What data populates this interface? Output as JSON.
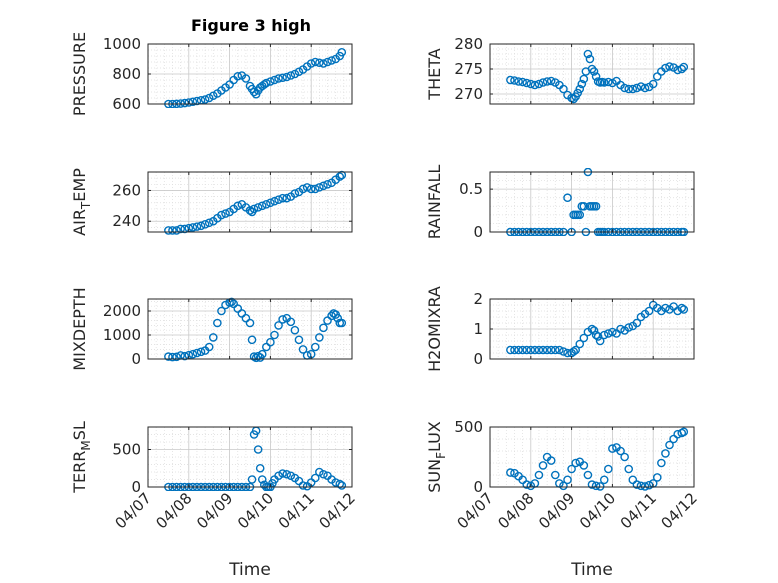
{
  "figure_title": "Figure 3 high",
  "colors": {
    "marker": "#0072BD",
    "axis": "#262626",
    "grid": "#c8c8c8",
    "minor_grid": "#dcdcdc",
    "background": "#ffffff"
  },
  "chart_data": [
    {
      "type": "scatter",
      "position": "row1-left",
      "title": "Figure 3 high",
      "ylabel": "PRESSURE",
      "ylabel_sub": "",
      "ylim": [
        600,
        1000
      ],
      "yticks": [
        600,
        800,
        1000
      ],
      "ytick_labels": [
        "600",
        "800",
        "1000"
      ],
      "xlim": [
        0,
        5
      ],
      "xticks": [
        0,
        1,
        2,
        3,
        4,
        5
      ],
      "xlabel": "",
      "grid": true,
      "minor_grid": true,
      "marker": "open-circle",
      "x": [
        0.5,
        0.6,
        0.7,
        0.8,
        0.9,
        1.0,
        1.1,
        1.2,
        1.3,
        1.4,
        1.5,
        1.6,
        1.7,
        1.8,
        1.9,
        2.0,
        2.1,
        2.2,
        2.3,
        2.4,
        2.5,
        2.55,
        2.6,
        2.65,
        2.7,
        2.75,
        2.8,
        2.85,
        2.9,
        3.0,
        3.1,
        3.2,
        3.3,
        3.4,
        3.5,
        3.6,
        3.7,
        3.8,
        3.9,
        4.0,
        4.1,
        4.2,
        4.3,
        4.4,
        4.5,
        4.6,
        4.7,
        4.75
      ],
      "y": [
        600,
        600,
        601,
        603,
        606,
        610,
        615,
        620,
        625,
        630,
        640,
        655,
        670,
        690,
        710,
        730,
        760,
        785,
        790,
        770,
        720,
        700,
        680,
        665,
        690,
        710,
        720,
        730,
        740,
        750,
        760,
        770,
        775,
        780,
        790,
        800,
        815,
        830,
        850,
        870,
        880,
        875,
        870,
        880,
        890,
        900,
        920,
        945
      ]
    },
    {
      "type": "scatter",
      "position": "row1-right",
      "ylabel": "THETA",
      "ylabel_sub": "",
      "ylim": [
        268,
        280
      ],
      "yticks": [
        270,
        275,
        280
      ],
      "ytick_labels": [
        "270",
        "275",
        "280"
      ],
      "xlim": [
        0,
        5
      ],
      "xticks": [
        0,
        1,
        2,
        3,
        4,
        5
      ],
      "xlabel": "",
      "grid": true,
      "minor_grid": true,
      "marker": "open-circle",
      "x": [
        0.5,
        0.6,
        0.7,
        0.8,
        0.9,
        1.0,
        1.1,
        1.2,
        1.3,
        1.4,
        1.5,
        1.6,
        1.7,
        1.8,
        1.9,
        2.0,
        2.05,
        2.1,
        2.15,
        2.2,
        2.25,
        2.3,
        2.35,
        2.4,
        2.45,
        2.5,
        2.55,
        2.6,
        2.65,
        2.7,
        2.75,
        2.8,
        2.9,
        3.0,
        3.1,
        3.2,
        3.3,
        3.4,
        3.5,
        3.6,
        3.7,
        3.8,
        3.9,
        4.0,
        4.1,
        4.2,
        4.3,
        4.4,
        4.5,
        4.6,
        4.7,
        4.75
      ],
      "y": [
        272.8,
        272.7,
        272.5,
        272.4,
        272.2,
        272.0,
        271.8,
        272.0,
        272.3,
        272.5,
        272.6,
        272.3,
        271.8,
        271.0,
        269.8,
        269.2,
        269.0,
        269.5,
        270.2,
        271.0,
        272.0,
        273.0,
        274.5,
        278.0,
        277.0,
        275.0,
        274.5,
        273.5,
        272.5,
        272.3,
        272.4,
        272.3,
        272.4,
        272.2,
        272.6,
        271.8,
        271.2,
        271.0,
        271.0,
        271.2,
        271.5,
        271.2,
        271.4,
        272.0,
        273.5,
        274.5,
        275.2,
        275.5,
        275.3,
        274.8,
        275.0,
        275.4
      ]
    },
    {
      "type": "scatter",
      "position": "row2-left",
      "ylabel": "AIR",
      "ylabel_sub": "T",
      "ylabel_suffix": "EMP",
      "ylim": [
        233,
        272
      ],
      "yticks": [
        240,
        260
      ],
      "ytick_labels": [
        "240",
        "260"
      ],
      "xlim": [
        0,
        5
      ],
      "xticks": [
        0,
        1,
        2,
        3,
        4,
        5
      ],
      "xlabel": "",
      "grid": true,
      "minor_grid": true,
      "marker": "open-circle",
      "x": [
        0.5,
        0.6,
        0.7,
        0.8,
        0.9,
        1.0,
        1.1,
        1.2,
        1.3,
        1.4,
        1.5,
        1.6,
        1.7,
        1.8,
        1.9,
        2.0,
        2.1,
        2.2,
        2.3,
        2.4,
        2.5,
        2.55,
        2.6,
        2.7,
        2.8,
        2.9,
        3.0,
        3.1,
        3.2,
        3.3,
        3.4,
        3.5,
        3.6,
        3.7,
        3.8,
        3.9,
        4.0,
        4.1,
        4.2,
        4.3,
        4.4,
        4.5,
        4.6,
        4.7,
        4.75
      ],
      "y": [
        234,
        234,
        234,
        235,
        235,
        235.5,
        236,
        236.5,
        237,
        238,
        239,
        240,
        242,
        244,
        245,
        246,
        248,
        250,
        251,
        249,
        247,
        246,
        248,
        249,
        250,
        251,
        252,
        253,
        254,
        255,
        255,
        256,
        258,
        259,
        261,
        262,
        261,
        261,
        262,
        263,
        264,
        265,
        267,
        269,
        270
      ]
    },
    {
      "type": "scatter",
      "position": "row2-right",
      "ylabel": "RAINFALL",
      "ylabel_sub": "",
      "ylim": [
        0,
        0.7
      ],
      "yticks": [
        0,
        0.5
      ],
      "ytick_labels": [
        "0",
        "0.5"
      ],
      "xlim": [
        0,
        5
      ],
      "xticks": [
        0,
        1,
        2,
        3,
        4,
        5
      ],
      "xlabel": "",
      "grid": true,
      "minor_grid": true,
      "marker": "open-circle",
      "x": [
        0.5,
        0.6,
        0.7,
        0.8,
        0.9,
        1.0,
        1.1,
        1.2,
        1.3,
        1.4,
        1.5,
        1.6,
        1.7,
        1.8,
        1.9,
        2.0,
        2.05,
        2.1,
        2.15,
        2.2,
        2.25,
        2.3,
        2.35,
        2.4,
        2.45,
        2.5,
        2.55,
        2.6,
        2.65,
        2.7,
        2.75,
        2.8,
        2.9,
        3.0,
        3.1,
        3.2,
        3.3,
        3.4,
        3.5,
        3.6,
        3.7,
        3.8,
        3.9,
        4.0,
        4.1,
        4.2,
        4.3,
        4.4,
        4.5,
        4.6,
        4.7,
        4.75
      ],
      "y": [
        0,
        0,
        0,
        0,
        0,
        0,
        0,
        0,
        0,
        0,
        0,
        0,
        0,
        0,
        0.4,
        0,
        0.2,
        0.2,
        0.2,
        0.2,
        0.3,
        0.3,
        0,
        0.7,
        0.3,
        0.3,
        0.3,
        0.3,
        0,
        0,
        0,
        0,
        0,
        0,
        0,
        0,
        0,
        0,
        0,
        0,
        0,
        0,
        0,
        0,
        0,
        0,
        0,
        0,
        0,
        0,
        0,
        0
      ]
    },
    {
      "type": "scatter",
      "position": "row3-left",
      "ylabel": "MIXDEPTH",
      "ylabel_sub": "",
      "ylim": [
        0,
        2500
      ],
      "yticks": [
        0,
        1000,
        2000
      ],
      "ytick_labels": [
        "0",
        "1000",
        "2000"
      ],
      "xlim": [
        0,
        5
      ],
      "xticks": [
        0,
        1,
        2,
        3,
        4,
        5
      ],
      "xlabel": "",
      "grid": true,
      "minor_grid": true,
      "marker": "open-circle",
      "x": [
        0.5,
        0.6,
        0.7,
        0.8,
        0.9,
        1.0,
        1.1,
        1.2,
        1.3,
        1.4,
        1.5,
        1.6,
        1.7,
        1.8,
        1.9,
        2.0,
        2.05,
        2.1,
        2.2,
        2.3,
        2.4,
        2.5,
        2.55,
        2.6,
        2.65,
        2.7,
        2.75,
        2.8,
        2.9,
        3.0,
        3.1,
        3.2,
        3.3,
        3.4,
        3.5,
        3.6,
        3.7,
        3.8,
        3.9,
        4.0,
        4.1,
        4.2,
        4.3,
        4.4,
        4.5,
        4.55,
        4.6,
        4.65,
        4.7,
        4.75
      ],
      "y": [
        100,
        80,
        90,
        150,
        120,
        160,
        200,
        250,
        300,
        350,
        500,
        900,
        1500,
        2000,
        2250,
        2350,
        2380,
        2300,
        2100,
        1900,
        1700,
        1500,
        800,
        100,
        50,
        120,
        60,
        200,
        500,
        700,
        1000,
        1400,
        1650,
        1700,
        1550,
        1200,
        800,
        400,
        150,
        200,
        500,
        900,
        1300,
        1600,
        1800,
        1900,
        1850,
        1700,
        1500,
        1500
      ]
    },
    {
      "type": "scatter",
      "position": "row3-right",
      "ylabel": "H2OMIXRA",
      "ylabel_sub": "",
      "ylim": [
        0,
        2
      ],
      "yticks": [
        0,
        1,
        2
      ],
      "ytick_labels": [
        "0",
        "1",
        "2"
      ],
      "xlim": [
        0,
        5
      ],
      "xticks": [
        0,
        1,
        2,
        3,
        4,
        5
      ],
      "xlabel": "",
      "grid": true,
      "minor_grid": true,
      "marker": "open-circle",
      "x": [
        0.5,
        0.6,
        0.7,
        0.8,
        0.9,
        1.0,
        1.1,
        1.2,
        1.3,
        1.4,
        1.5,
        1.6,
        1.7,
        1.8,
        1.9,
        2.0,
        2.05,
        2.1,
        2.2,
        2.3,
        2.4,
        2.5,
        2.55,
        2.6,
        2.65,
        2.7,
        2.8,
        2.9,
        3.0,
        3.1,
        3.2,
        3.3,
        3.4,
        3.5,
        3.6,
        3.7,
        3.8,
        3.9,
        4.0,
        4.1,
        4.2,
        4.3,
        4.4,
        4.5,
        4.6,
        4.7,
        4.75
      ],
      "y": [
        0.3,
        0.3,
        0.3,
        0.3,
        0.3,
        0.3,
        0.3,
        0.3,
        0.3,
        0.3,
        0.3,
        0.3,
        0.3,
        0.25,
        0.2,
        0.2,
        0.25,
        0.3,
        0.5,
        0.7,
        0.9,
        1.0,
        0.95,
        0.8,
        0.75,
        0.6,
        0.8,
        0.85,
        0.9,
        0.85,
        1.0,
        0.95,
        1.05,
        1.1,
        1.2,
        1.4,
        1.5,
        1.6,
        1.8,
        1.7,
        1.6,
        1.7,
        1.65,
        1.75,
        1.6,
        1.7,
        1.65
      ]
    },
    {
      "type": "scatter",
      "position": "row4-left",
      "ylabel": "TERR",
      "ylabel_sub": "M",
      "ylabel_suffix": "SL",
      "ylim": [
        0,
        800
      ],
      "yticks": [
        0,
        500
      ],
      "ytick_labels": [
        "0",
        "500"
      ],
      "xlim": [
        0,
        5
      ],
      "xticks": [
        0,
        1,
        2,
        3,
        4,
        5
      ],
      "xtick_labels": [
        "04/07",
        "04/08",
        "04/09",
        "04/10",
        "04/11",
        "04/12"
      ],
      "xlabel": "Time",
      "grid": true,
      "minor_grid": true,
      "marker": "open-circle",
      "x": [
        0.5,
        0.6,
        0.7,
        0.8,
        0.9,
        1.0,
        1.1,
        1.2,
        1.3,
        1.4,
        1.5,
        1.6,
        1.7,
        1.8,
        1.9,
        2.0,
        2.1,
        2.2,
        2.3,
        2.4,
        2.5,
        2.55,
        2.6,
        2.65,
        2.7,
        2.75,
        2.8,
        2.85,
        2.9,
        2.95,
        3.0,
        3.05,
        3.1,
        3.2,
        3.3,
        3.4,
        3.5,
        3.6,
        3.7,
        3.8,
        3.9,
        4.0,
        4.1,
        4.2,
        4.3,
        4.4,
        4.5,
        4.6,
        4.7,
        4.75
      ],
      "y": [
        0,
        0,
        0,
        0,
        0,
        0,
        0,
        0,
        0,
        0,
        0,
        0,
        0,
        0,
        0,
        0,
        0,
        0,
        0,
        0,
        0,
        100,
        700,
        750,
        500,
        250,
        100,
        30,
        0,
        0,
        0,
        50,
        100,
        150,
        180,
        170,
        150,
        120,
        80,
        20,
        10,
        60,
        120,
        200,
        170,
        150,
        100,
        60,
        40,
        20
      ]
    },
    {
      "type": "scatter",
      "position": "row4-right",
      "ylabel": "SUN",
      "ylabel_sub": "F",
      "ylabel_suffix": "LUX",
      "ylim": [
        0,
        500
      ],
      "yticks": [
        0,
        500
      ],
      "ytick_labels": [
        "0",
        "500"
      ],
      "xlim": [
        0,
        5
      ],
      "xticks": [
        0,
        1,
        2,
        3,
        4,
        5
      ],
      "xtick_labels": [
        "04/07",
        "04/08",
        "04/09",
        "04/10",
        "04/11",
        "04/12"
      ],
      "xlabel": "Time",
      "grid": true,
      "minor_grid": true,
      "marker": "open-circle",
      "x": [
        0.5,
        0.6,
        0.7,
        0.8,
        0.9,
        1.0,
        1.1,
        1.2,
        1.3,
        1.4,
        1.5,
        1.6,
        1.7,
        1.8,
        1.9,
        2.0,
        2.1,
        2.2,
        2.3,
        2.4,
        2.5,
        2.6,
        2.7,
        2.8,
        2.9,
        3.0,
        3.1,
        3.2,
        3.3,
        3.4,
        3.5,
        3.6,
        3.7,
        3.8,
        3.9,
        4.0,
        4.1,
        4.2,
        4.3,
        4.4,
        4.5,
        4.6,
        4.7,
        4.75
      ],
      "y": [
        120,
        115,
        90,
        60,
        20,
        10,
        30,
        100,
        180,
        250,
        220,
        100,
        30,
        10,
        60,
        150,
        200,
        210,
        180,
        100,
        20,
        10,
        5,
        60,
        150,
        320,
        330,
        300,
        250,
        150,
        60,
        20,
        10,
        5,
        15,
        30,
        80,
        200,
        280,
        350,
        400,
        440,
        450,
        460
      ]
    }
  ]
}
